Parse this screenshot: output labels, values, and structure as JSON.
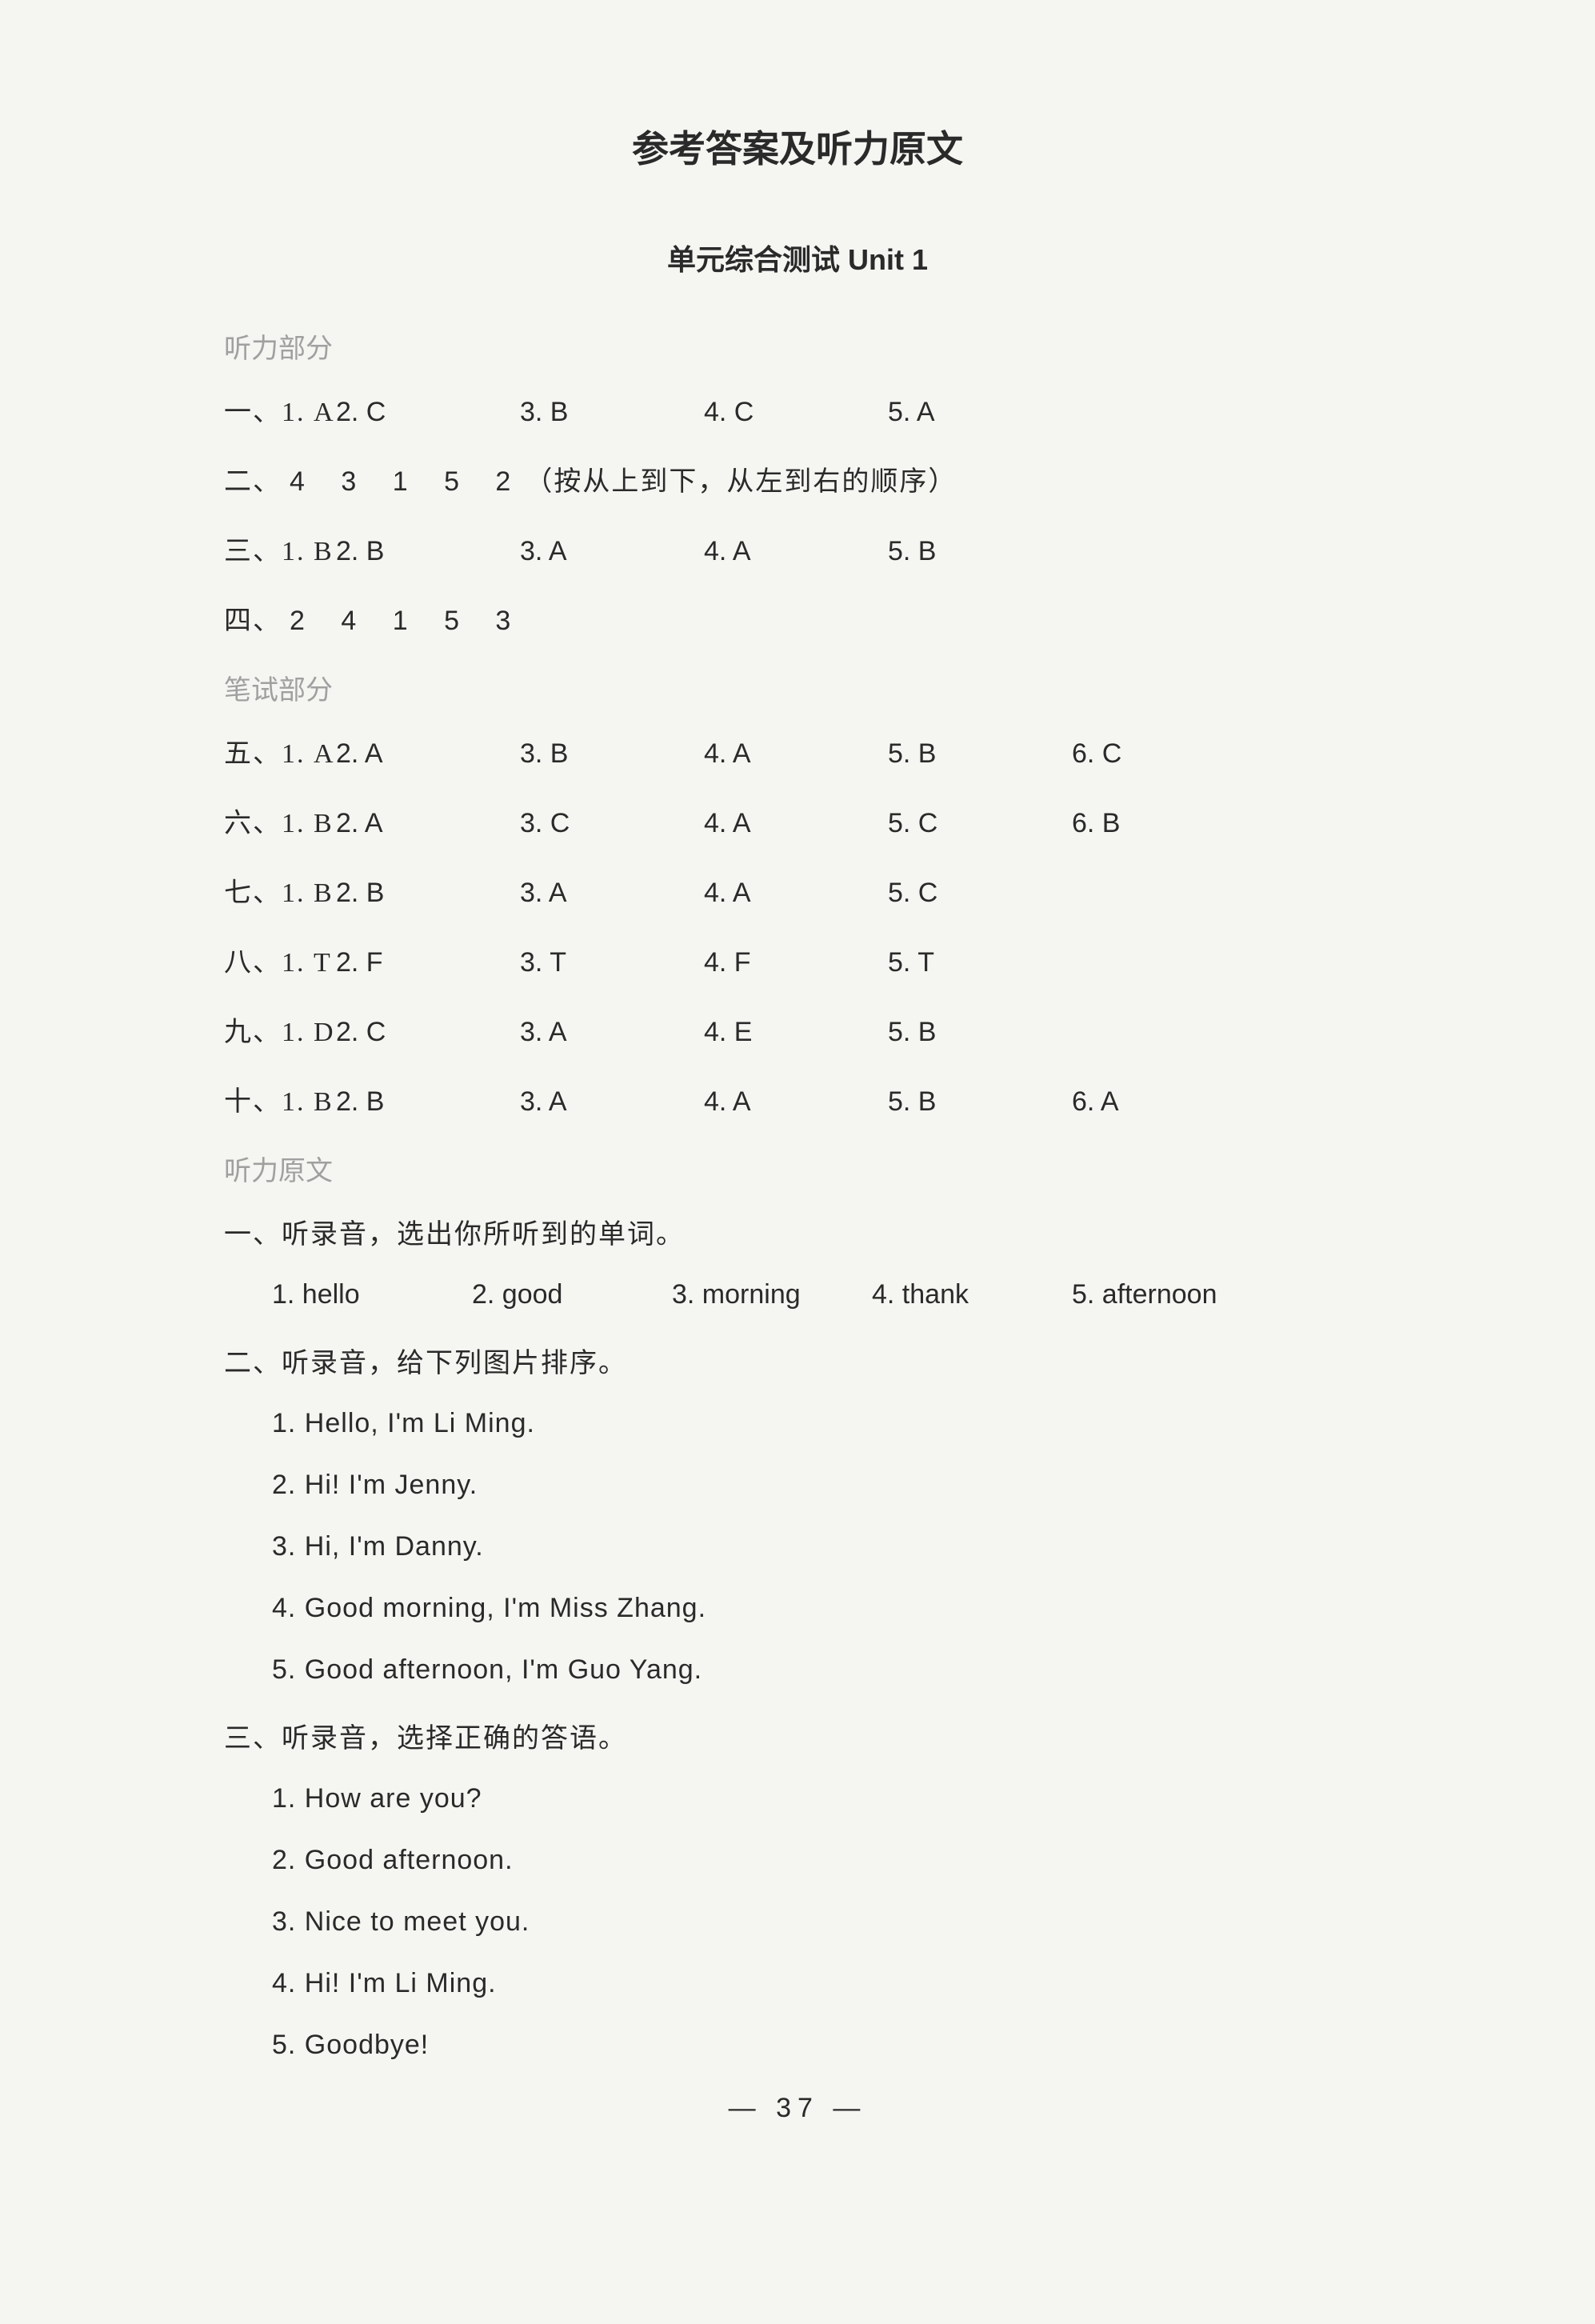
{
  "main_title": "参考答案及听力原文",
  "sub_title": "单元综合测试 Unit 1",
  "listening_label": "听力部分",
  "writing_label": "笔试部分",
  "script_label": "听力原文",
  "rows": {
    "r1": {
      "prefix": "一、1. A",
      "a2": "2. C",
      "a3": "3. B",
      "a4": "4. C",
      "a5": "5. A"
    },
    "r2": {
      "prefix": "二、",
      "nums": "4 3 1 5 2",
      "note": "（按从上到下，从左到右的顺序）"
    },
    "r3": {
      "prefix": "三、1. B",
      "a2": "2. B",
      "a3": "3. A",
      "a4": "4. A",
      "a5": "5. B"
    },
    "r4": {
      "prefix": "四、",
      "nums": "2 4 1 5 3"
    },
    "r5": {
      "prefix": "五、1. A",
      "a2": "2. A",
      "a3": "3. B",
      "a4": "4. A",
      "a5": "5. B",
      "a6": "6. C"
    },
    "r6": {
      "prefix": "六、1. B",
      "a2": "2. A",
      "a3": "3. C",
      "a4": "4. A",
      "a5": "5. C",
      "a6": "6. B"
    },
    "r7": {
      "prefix": "七、1. B",
      "a2": "2. B",
      "a3": "3. A",
      "a4": "4. A",
      "a5": "5. C"
    },
    "r8": {
      "prefix": "八、1. T",
      "a2": "2. F",
      "a3": "3. T",
      "a4": "4. F",
      "a5": "5. T"
    },
    "r9": {
      "prefix": "九、1. D",
      "a2": "2. C",
      "a3": "3. A",
      "a4": "4. E",
      "a5": "5. B"
    },
    "r10": {
      "prefix": "十、1. B",
      "a2": "2. B",
      "a3": "3. A",
      "a4": "4. A",
      "a5": "5. B",
      "a6": "6. A"
    }
  },
  "script": {
    "s1": {
      "heading": "一、听录音，选出你所听到的单词。",
      "w1": "1. hello",
      "w2": "2. good",
      "w3": "3. morning",
      "w4": "4. thank",
      "w5": "5. afternoon"
    },
    "s2": {
      "heading": "二、听录音，给下列图片排序。",
      "l1": "1. Hello, I'm Li Ming.",
      "l2": "2. Hi! I'm Jenny.",
      "l3": "3. Hi, I'm Danny.",
      "l4": "4. Good morning, I'm Miss Zhang.",
      "l5": "5. Good afternoon, I'm Guo Yang."
    },
    "s3": {
      "heading": "三、听录音，选择正确的答语。",
      "l1": "1. How are you?",
      "l2": "2. Good afternoon.",
      "l3": "3. Nice to meet you.",
      "l4": "4. Hi! I'm Li Ming.",
      "l5": "5. Goodbye!"
    }
  },
  "page_number": "— 37 —"
}
